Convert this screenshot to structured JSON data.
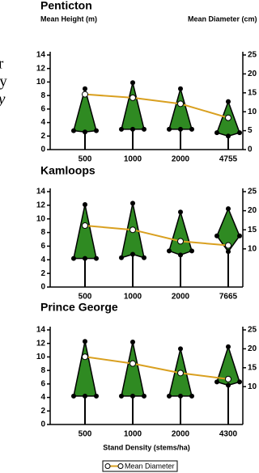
{
  "margin_text": [
    "r",
    "ty",
    "y"
  ],
  "chart_data": [
    {
      "type": "kite",
      "title": "Penticton",
      "y_label": "Mean Height (m)",
      "y2_label": "Mean Diameter (cm)",
      "categories": [
        "500",
        "1000",
        "2000",
        "4755"
      ],
      "height": [
        9,
        9.9,
        9,
        7.1
      ],
      "crown_widest": [
        2.8,
        3,
        3,
        2.5
      ],
      "crown_bottom": [
        2.6,
        3,
        3,
        2
      ],
      "color": "#2f8a22",
      "series": [
        {
          "name": "Mean Diameter",
          "color": "#d9a020",
          "values": [
            14.6,
            13.7,
            12.1,
            8.4
          ],
          "axis": "y2"
        }
      ],
      "ylim": [
        0,
        14
      ],
      "yticks": [
        0,
        2,
        4,
        6,
        8,
        10,
        12,
        14
      ],
      "y2lim": [
        0,
        25
      ],
      "y2ticks": [
        0,
        5,
        10,
        15,
        20,
        25
      ]
    },
    {
      "type": "kite",
      "title": "Kamloops",
      "categories": [
        "500",
        "1000",
        "2000",
        "7665"
      ],
      "height": [
        12.1,
        12.3,
        11,
        11.5
      ],
      "crown_widest": [
        4.2,
        4.3,
        5.3,
        7.5
      ],
      "crown_bottom": [
        4.2,
        4.8,
        4.7,
        5.2
      ],
      "color": "#2f8a22",
      "series": [
        {
          "name": "Mean Diameter",
          "color": "#d9a020",
          "values": [
            16.1,
            15,
            12,
            10.9
          ],
          "axis": "y2"
        }
      ],
      "ylim": [
        0,
        14
      ],
      "yticks": [
        0,
        2,
        4,
        6,
        8,
        10,
        12,
        14
      ],
      "y2lim": [
        0,
        25
      ],
      "y2ticks": [
        10,
        15,
        20,
        25
      ]
    },
    {
      "type": "kite",
      "title": "Prince George",
      "x_label": "Stand Density (stems/ha)",
      "categories": [
        "500",
        "1000",
        "2000",
        "4300"
      ],
      "height": [
        12.3,
        12.2,
        11.2,
        11.5
      ],
      "crown_widest": [
        4.2,
        4.2,
        4.2,
        6.3
      ],
      "crown_bottom": [
        4.2,
        4.2,
        4.2,
        5.8
      ],
      "color": "#2f8a22",
      "series": [
        {
          "name": "Mean Diameter",
          "color": "#d9a020",
          "values": [
            17.9,
            16.1,
            13.6,
            12
          ],
          "axis": "y2"
        }
      ],
      "ylim": [
        0,
        14
      ],
      "yticks": [
        0,
        2,
        4,
        6,
        8,
        10,
        12,
        14
      ],
      "y2lim": [
        0,
        25
      ],
      "y2ticks": [
        10,
        15,
        20,
        25
      ],
      "legend": "bottom"
    }
  ]
}
